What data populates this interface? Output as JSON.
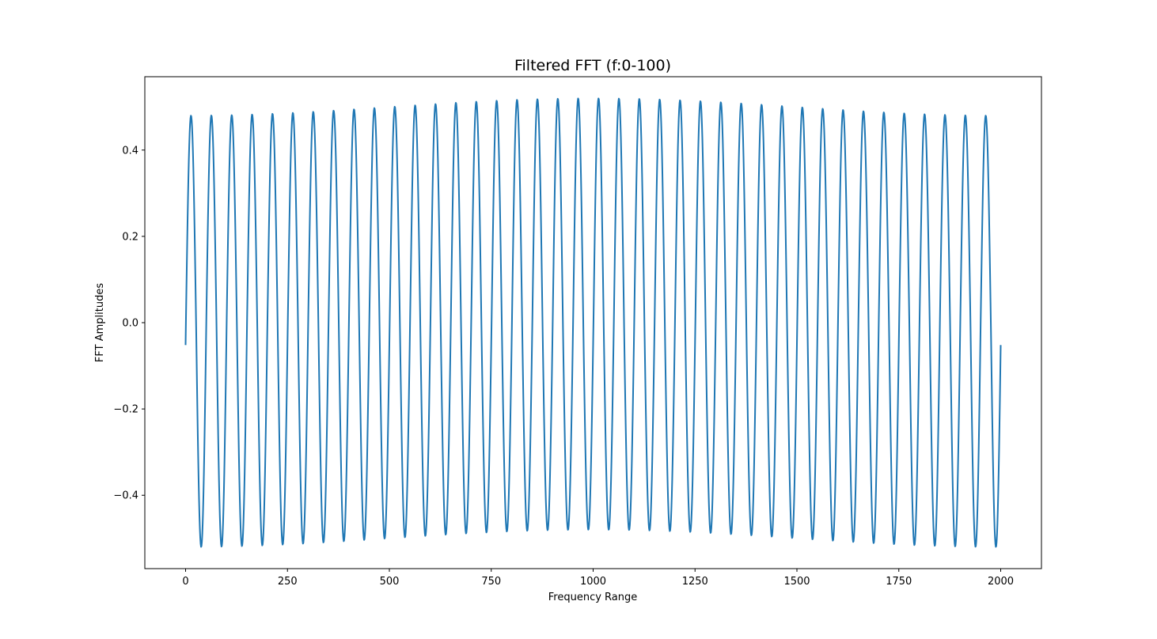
{
  "chart_data": {
    "type": "line",
    "title": "Filtered FFT (f:0-100)",
    "xlabel": "Frequency Range",
    "ylabel": "FFT Amplitudes",
    "xlim": [
      -100,
      2100
    ],
    "ylim": [
      -0.57,
      0.57
    ],
    "xticks": [
      0,
      250,
      500,
      750,
      1000,
      1250,
      1500,
      1750,
      2000
    ],
    "xtick_labels": [
      "0",
      "250",
      "500",
      "750",
      "1000",
      "1250",
      "1500",
      "1750",
      "2000"
    ],
    "yticks": [
      -0.4,
      -0.2,
      0.0,
      0.2,
      0.4
    ],
    "ytick_labels": [
      "−0.4",
      "−0.2",
      "0.0",
      "0.2",
      "0.4"
    ],
    "grid": false,
    "legend": "none",
    "series": [
      {
        "color": "#1f77b4",
        "x_start": 0,
        "x_end": 2000,
        "num_points": 2000,
        "period": 50,
        "phase_offset": -0.1,
        "base_amplitude": 0.5,
        "amplitude_modulation": 0.02,
        "start_value": -0.03,
        "end_value": 0.03,
        "peaks": [
          {
            "x": 12,
            "y": 0.478
          },
          {
            "x": 62,
            "y": 0.52
          },
          {
            "x": 112,
            "y": 0.48
          },
          {
            "x": 162,
            "y": 0.518
          },
          {
            "x": 212,
            "y": 0.482
          },
          {
            "x": 262,
            "y": 0.516
          },
          {
            "x": 312,
            "y": 0.484
          },
          {
            "x": 362,
            "y": 0.514
          },
          {
            "x": 412,
            "y": 0.486
          },
          {
            "x": 462,
            "y": 0.512
          },
          {
            "x": 512,
            "y": 0.489
          },
          {
            "x": 562,
            "y": 0.509
          },
          {
            "x": 612,
            "y": 0.492
          },
          {
            "x": 662,
            "y": 0.507
          },
          {
            "x": 712,
            "y": 0.494
          },
          {
            "x": 762,
            "y": 0.505
          },
          {
            "x": 812,
            "y": 0.496
          },
          {
            "x": 862,
            "y": 0.503
          },
          {
            "x": 912,
            "y": 0.498
          },
          {
            "x": 962,
            "y": 0.501
          },
          {
            "x": 1012,
            "y": 0.501
          },
          {
            "x": 1062,
            "y": 0.499
          },
          {
            "x": 1112,
            "y": 0.502
          },
          {
            "x": 1162,
            "y": 0.497
          },
          {
            "x": 1212,
            "y": 0.505
          },
          {
            "x": 1262,
            "y": 0.494
          },
          {
            "x": 1312,
            "y": 0.507
          },
          {
            "x": 1362,
            "y": 0.492
          },
          {
            "x": 1412,
            "y": 0.509
          },
          {
            "x": 1462,
            "y": 0.49
          },
          {
            "x": 1512,
            "y": 0.512
          },
          {
            "x": 1562,
            "y": 0.487
          },
          {
            "x": 1612,
            "y": 0.514
          },
          {
            "x": 1662,
            "y": 0.485
          },
          {
            "x": 1712,
            "y": 0.516
          },
          {
            "x": 1762,
            "y": 0.482
          },
          {
            "x": 1812,
            "y": 0.518
          },
          {
            "x": 1862,
            "y": 0.48
          },
          {
            "x": 1912,
            "y": 0.52
          },
          {
            "x": 1962,
            "y": 0.478
          }
        ]
      }
    ]
  }
}
